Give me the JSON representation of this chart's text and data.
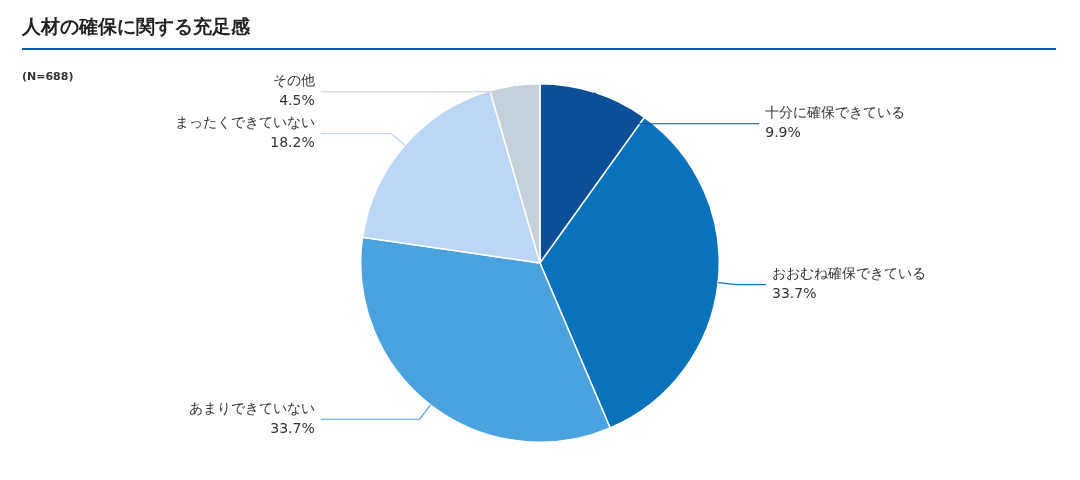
{
  "chart_data": {
    "type": "pie",
    "title": "人材の確保に関する充足感",
    "annotations": [
      "(N=688)"
    ],
    "categories": [
      "十分に確保できている",
      "おおむね確保できている",
      "あまりできていない",
      "まったくできていない",
      "その他"
    ],
    "values": [
      9.9,
      33.7,
      33.7,
      18.2,
      4.5
    ],
    "value_labels": [
      "9.9%",
      "33.7%",
      "33.7%",
      "18.2%",
      "4.5%"
    ],
    "colors": [
      "#0b4f98",
      "#0a72bb",
      "#4aa3df",
      "#bcd6f6",
      "#c6d0da"
    ],
    "legend": false
  }
}
